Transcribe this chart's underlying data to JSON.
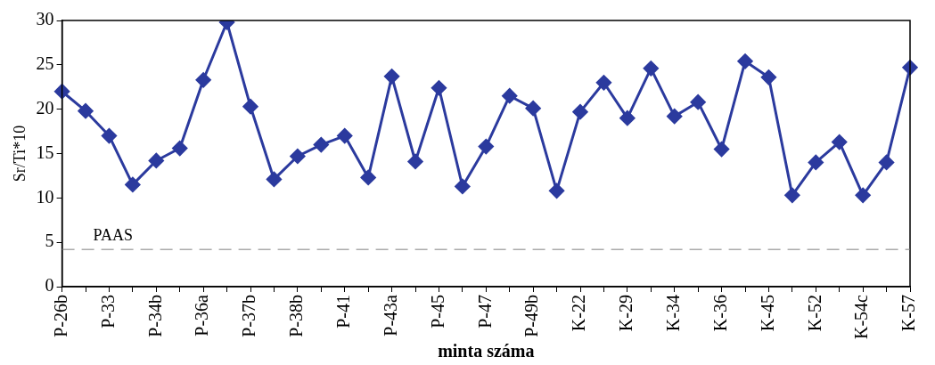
{
  "chart_data": {
    "type": "line",
    "xlabel": "minta száma",
    "ylabel": "Sr/Ti*10",
    "categories": [
      "P-26b",
      null,
      "P-33",
      null,
      "P-34b",
      null,
      "P-36a",
      null,
      "P-37b",
      null,
      "P-38b",
      null,
      "P-41",
      null,
      "P-43a",
      null,
      "P-45",
      null,
      "P-47",
      null,
      "P-49b",
      null,
      "K-22",
      null,
      "K-29",
      null,
      "K-34",
      null,
      "K-36",
      null,
      "K-45",
      null,
      "K-52",
      null,
      "K-54c",
      null,
      "K-57"
    ],
    "series": [
      {
        "color": "#2b3a9e",
        "values": [
          22,
          19.8,
          17,
          11.5,
          14.2,
          15.6,
          23.3,
          29.8,
          20.3,
          12.1,
          14.7,
          16,
          17,
          12.3,
          23.7,
          14.1,
          22.4,
          11.3,
          15.8,
          21.5,
          20.1,
          10.8,
          19.7,
          23,
          19,
          24.6,
          19.2,
          20.8,
          15.5,
          25.4,
          23.6,
          10.3,
          14,
          16.3,
          10.3,
          14,
          24.7
        ]
      }
    ],
    "ylim": [
      0,
      30
    ],
    "yticks": [
      0,
      5,
      10,
      15,
      20,
      25,
      30
    ],
    "grid": false,
    "legend": false,
    "marker": "diamond",
    "line_style": "solid",
    "ref_lines": [
      {
        "axis": "y",
        "value": 4.2,
        "label": "PAAS",
        "color": "#808080",
        "line_style": "dashed"
      }
    ]
  }
}
